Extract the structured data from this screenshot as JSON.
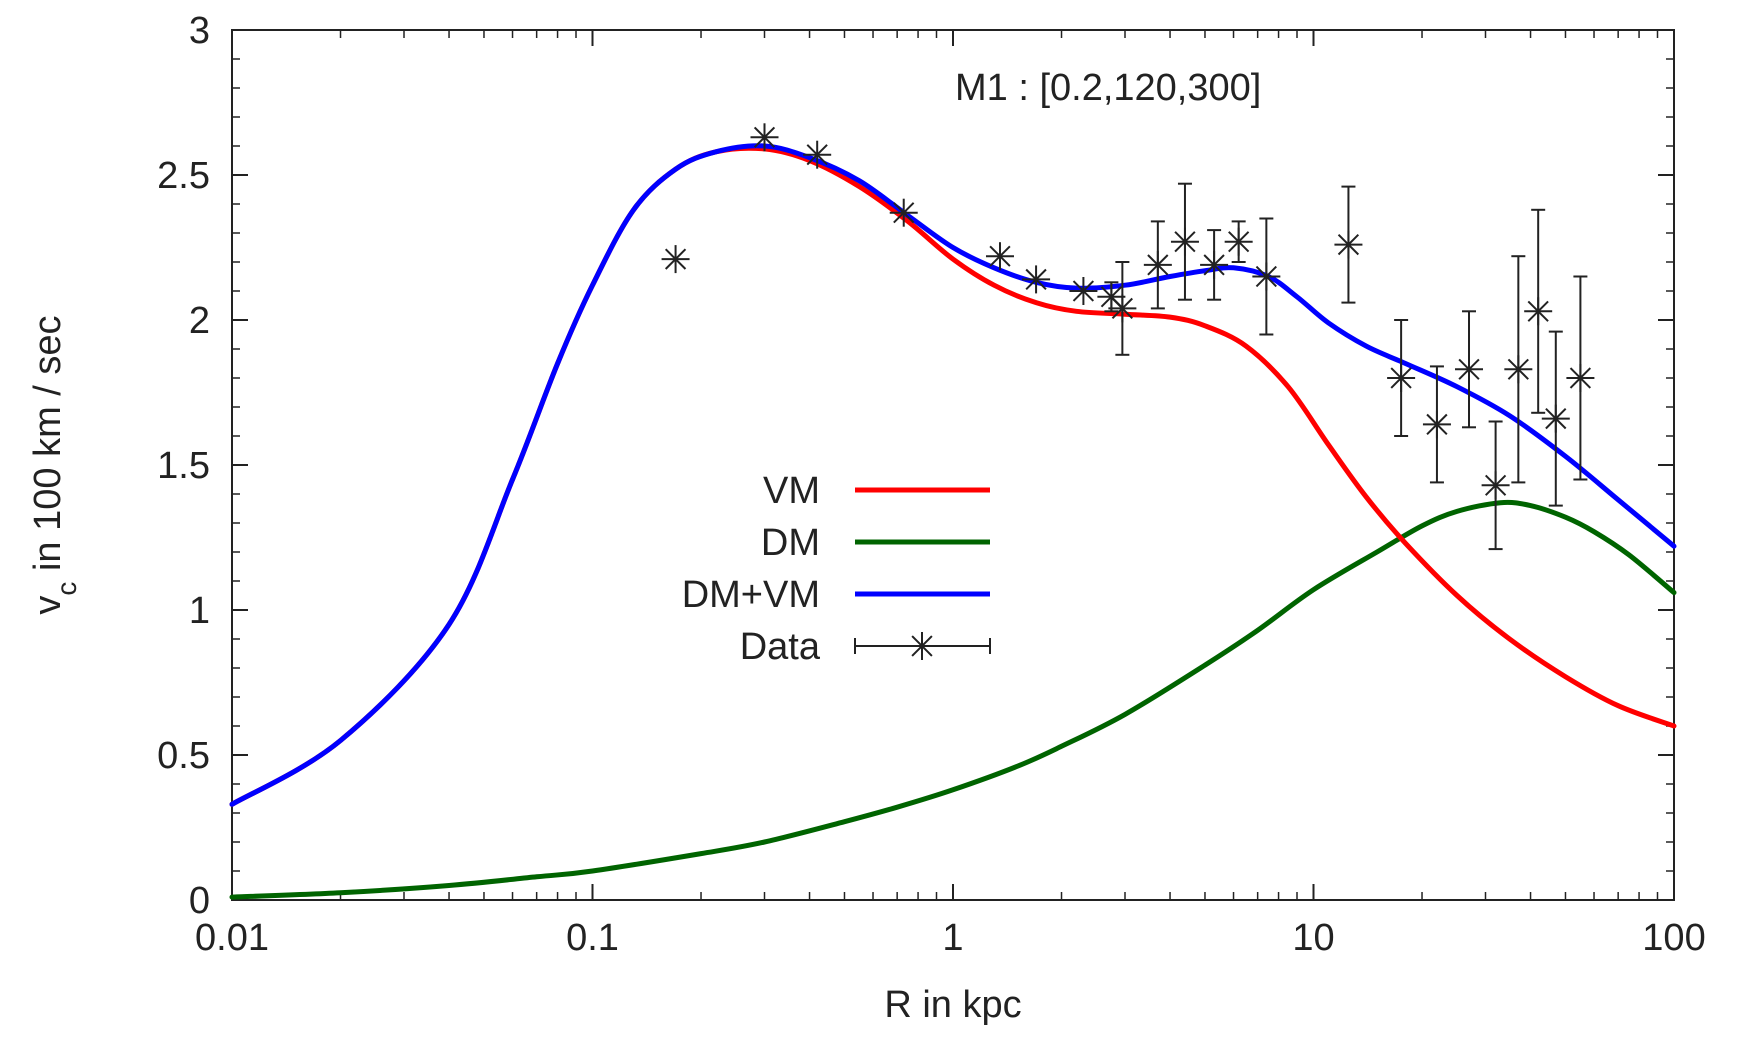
{
  "chart_data": {
    "type": "line",
    "title": "",
    "annotation": "M1 : [0.2,120,300]",
    "xlabel": "R in kpc",
    "ylabel_main": "v",
    "ylabel_sub": "c",
    "ylabel_rest": " in 100 km / sec",
    "xscale": "log",
    "xlim": [
      0.01,
      100
    ],
    "ylim": [
      0,
      3
    ],
    "xticks": [
      {
        "value": 0.01,
        "label": "0.01"
      },
      {
        "value": 0.1,
        "label": "0.1"
      },
      {
        "value": 1,
        "label": "1"
      },
      {
        "value": 10,
        "label": "10"
      },
      {
        "value": 100,
        "label": "100"
      }
    ],
    "yticks": [
      {
        "value": 0,
        "label": "0"
      },
      {
        "value": 0.5,
        "label": "0.5"
      },
      {
        "value": 1,
        "label": "1"
      },
      {
        "value": 1.5,
        "label": "1.5"
      },
      {
        "value": 2,
        "label": "2"
      },
      {
        "value": 2.5,
        "label": "2.5"
      },
      {
        "value": 3,
        "label": "3"
      }
    ],
    "grid": false,
    "legend_position": "center",
    "series": [
      {
        "name": "VM",
        "color": "#ff0000",
        "points": [
          [
            0.01,
            0.33
          ],
          [
            0.02,
            0.55
          ],
          [
            0.04,
            0.95
          ],
          [
            0.06,
            1.45
          ],
          [
            0.08,
            1.85
          ],
          [
            0.1,
            2.12
          ],
          [
            0.13,
            2.38
          ],
          [
            0.17,
            2.52
          ],
          [
            0.22,
            2.58
          ],
          [
            0.3,
            2.59
          ],
          [
            0.4,
            2.55
          ],
          [
            0.55,
            2.46
          ],
          [
            0.75,
            2.34
          ],
          [
            1.0,
            2.21
          ],
          [
            1.3,
            2.12
          ],
          [
            1.7,
            2.06
          ],
          [
            2.2,
            2.03
          ],
          [
            3.0,
            2.02
          ],
          [
            4.0,
            2.01
          ],
          [
            5.0,
            1.98
          ],
          [
            6.5,
            1.91
          ],
          [
            8.5,
            1.77
          ],
          [
            11,
            1.57
          ],
          [
            14,
            1.39
          ],
          [
            18,
            1.23
          ],
          [
            25,
            1.05
          ],
          [
            35,
            0.9
          ],
          [
            50,
            0.77
          ],
          [
            70,
            0.67
          ],
          [
            100,
            0.6
          ]
        ]
      },
      {
        "name": "DM",
        "color": "#006400",
        "points": [
          [
            0.01,
            0.01
          ],
          [
            0.02,
            0.025
          ],
          [
            0.04,
            0.05
          ],
          [
            0.07,
            0.08
          ],
          [
            0.1,
            0.1
          ],
          [
            0.2,
            0.16
          ],
          [
            0.3,
            0.2
          ],
          [
            0.5,
            0.27
          ],
          [
            0.7,
            0.32
          ],
          [
            1.0,
            0.38
          ],
          [
            1.5,
            0.46
          ],
          [
            2,
            0.53
          ],
          [
            3,
            0.64
          ],
          [
            5,
            0.81
          ],
          [
            7,
            0.93
          ],
          [
            10,
            1.07
          ],
          [
            15,
            1.2
          ],
          [
            20,
            1.29
          ],
          [
            25,
            1.34
          ],
          [
            33,
            1.37
          ],
          [
            40,
            1.36
          ],
          [
            50,
            1.32
          ],
          [
            60,
            1.27
          ],
          [
            75,
            1.19
          ],
          [
            100,
            1.06
          ]
        ]
      },
      {
        "name": "DM+VM",
        "color": "#0000ff",
        "points": [
          [
            0.01,
            0.33
          ],
          [
            0.02,
            0.55
          ],
          [
            0.04,
            0.95
          ],
          [
            0.06,
            1.45
          ],
          [
            0.08,
            1.85
          ],
          [
            0.1,
            2.12
          ],
          [
            0.13,
            2.38
          ],
          [
            0.17,
            2.52
          ],
          [
            0.22,
            2.58
          ],
          [
            0.3,
            2.6
          ],
          [
            0.4,
            2.56
          ],
          [
            0.55,
            2.48
          ],
          [
            0.75,
            2.36
          ],
          [
            1.0,
            2.25
          ],
          [
            1.3,
            2.18
          ],
          [
            1.7,
            2.13
          ],
          [
            2.2,
            2.11
          ],
          [
            3.0,
            2.12
          ],
          [
            4.0,
            2.15
          ],
          [
            5.0,
            2.17
          ],
          [
            6.0,
            2.18
          ],
          [
            7.5,
            2.15
          ],
          [
            9,
            2.08
          ],
          [
            11,
            1.99
          ],
          [
            14,
            1.91
          ],
          [
            18,
            1.85
          ],
          [
            25,
            1.77
          ],
          [
            35,
            1.67
          ],
          [
            50,
            1.53
          ],
          [
            70,
            1.38
          ],
          [
            100,
            1.22
          ]
        ]
      }
    ],
    "data_series": {
      "name": "Data",
      "color": "#222222",
      "points": [
        {
          "x": 0.17,
          "y": 2.21,
          "err": 0
        },
        {
          "x": 0.3,
          "y": 2.63,
          "err": 0
        },
        {
          "x": 0.42,
          "y": 2.57,
          "err": 0
        },
        {
          "x": 0.73,
          "y": 2.37,
          "err": 0
        },
        {
          "x": 1.35,
          "y": 2.22,
          "err": 0
        },
        {
          "x": 1.7,
          "y": 2.14,
          "err": 0
        },
        {
          "x": 2.3,
          "y": 2.1,
          "err": 0
        },
        {
          "x": 2.75,
          "y": 2.08,
          "err": 0.05
        },
        {
          "x": 2.95,
          "y": 2.04,
          "err": 0.16
        },
        {
          "x": 3.7,
          "y": 2.19,
          "err": 0.15
        },
        {
          "x": 4.4,
          "y": 2.27,
          "err": 0.2
        },
        {
          "x": 5.3,
          "y": 2.19,
          "err": 0.12
        },
        {
          "x": 6.2,
          "y": 2.27,
          "err": 0.07
        },
        {
          "x": 7.4,
          "y": 2.15,
          "err": 0.2
        },
        {
          "x": 12.5,
          "y": 2.26,
          "err": 0.2
        },
        {
          "x": 17.5,
          "y": 1.8,
          "err": 0.2
        },
        {
          "x": 22,
          "y": 1.64,
          "err": 0.2
        },
        {
          "x": 27,
          "y": 1.83,
          "err": 0.2
        },
        {
          "x": 32,
          "y": 1.43,
          "err": 0.22
        },
        {
          "x": 37,
          "y": 1.83,
          "err": 0.39
        },
        {
          "x": 42,
          "y": 2.03,
          "err": 0.35
        },
        {
          "x": 47,
          "y": 1.66,
          "err": 0.3
        },
        {
          "x": 55,
          "y": 1.8,
          "err": 0.35
        }
      ]
    }
  }
}
